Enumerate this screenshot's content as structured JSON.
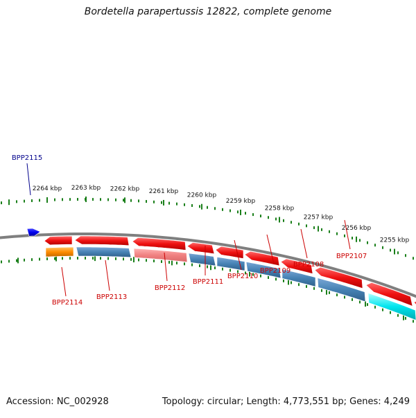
{
  "title": "Bordetella parapertussis 12822, complete genome",
  "footer": {
    "accession": "Accession: NC_002928",
    "summary": "Topology: circular; Length: 4,773,551 bp; Genes: 4,249"
  },
  "colors": {
    "backbone": "#7f7f7f",
    "ruler": "#1a7f1a",
    "feature_red": "#ee1111",
    "feature_pink": "#f08080",
    "feature_orange": "#ff8c00",
    "feature_steelblue": "#4682b4",
    "feature_cyan": "#00e5ee",
    "feature_blue": "#0000ee",
    "label_red": "#cc0000",
    "label_blue": "#00008b"
  },
  "kbp_labels": [
    "2264 kbp",
    "2263 kbp",
    "2262 kbp",
    "2261 kbp",
    "2260 kbp",
    "2259 kbp",
    "2258 kbp",
    "2257 kbp",
    "2256 kbp",
    "2255 kbp"
  ],
  "gene_labels": [
    {
      "id": "BPP2115",
      "color": "blue"
    },
    {
      "id": "BPP2114",
      "color": "red"
    },
    {
      "id": "BPP2113",
      "color": "red"
    },
    {
      "id": "BPP2112",
      "color": "red"
    },
    {
      "id": "BPP2111",
      "color": "red"
    },
    {
      "id": "BPP2110",
      "color": "red"
    },
    {
      "id": "BPP2109",
      "color": "red"
    },
    {
      "id": "BPP2108",
      "color": "red"
    },
    {
      "id": "BPP2107",
      "color": "red"
    }
  ]
}
